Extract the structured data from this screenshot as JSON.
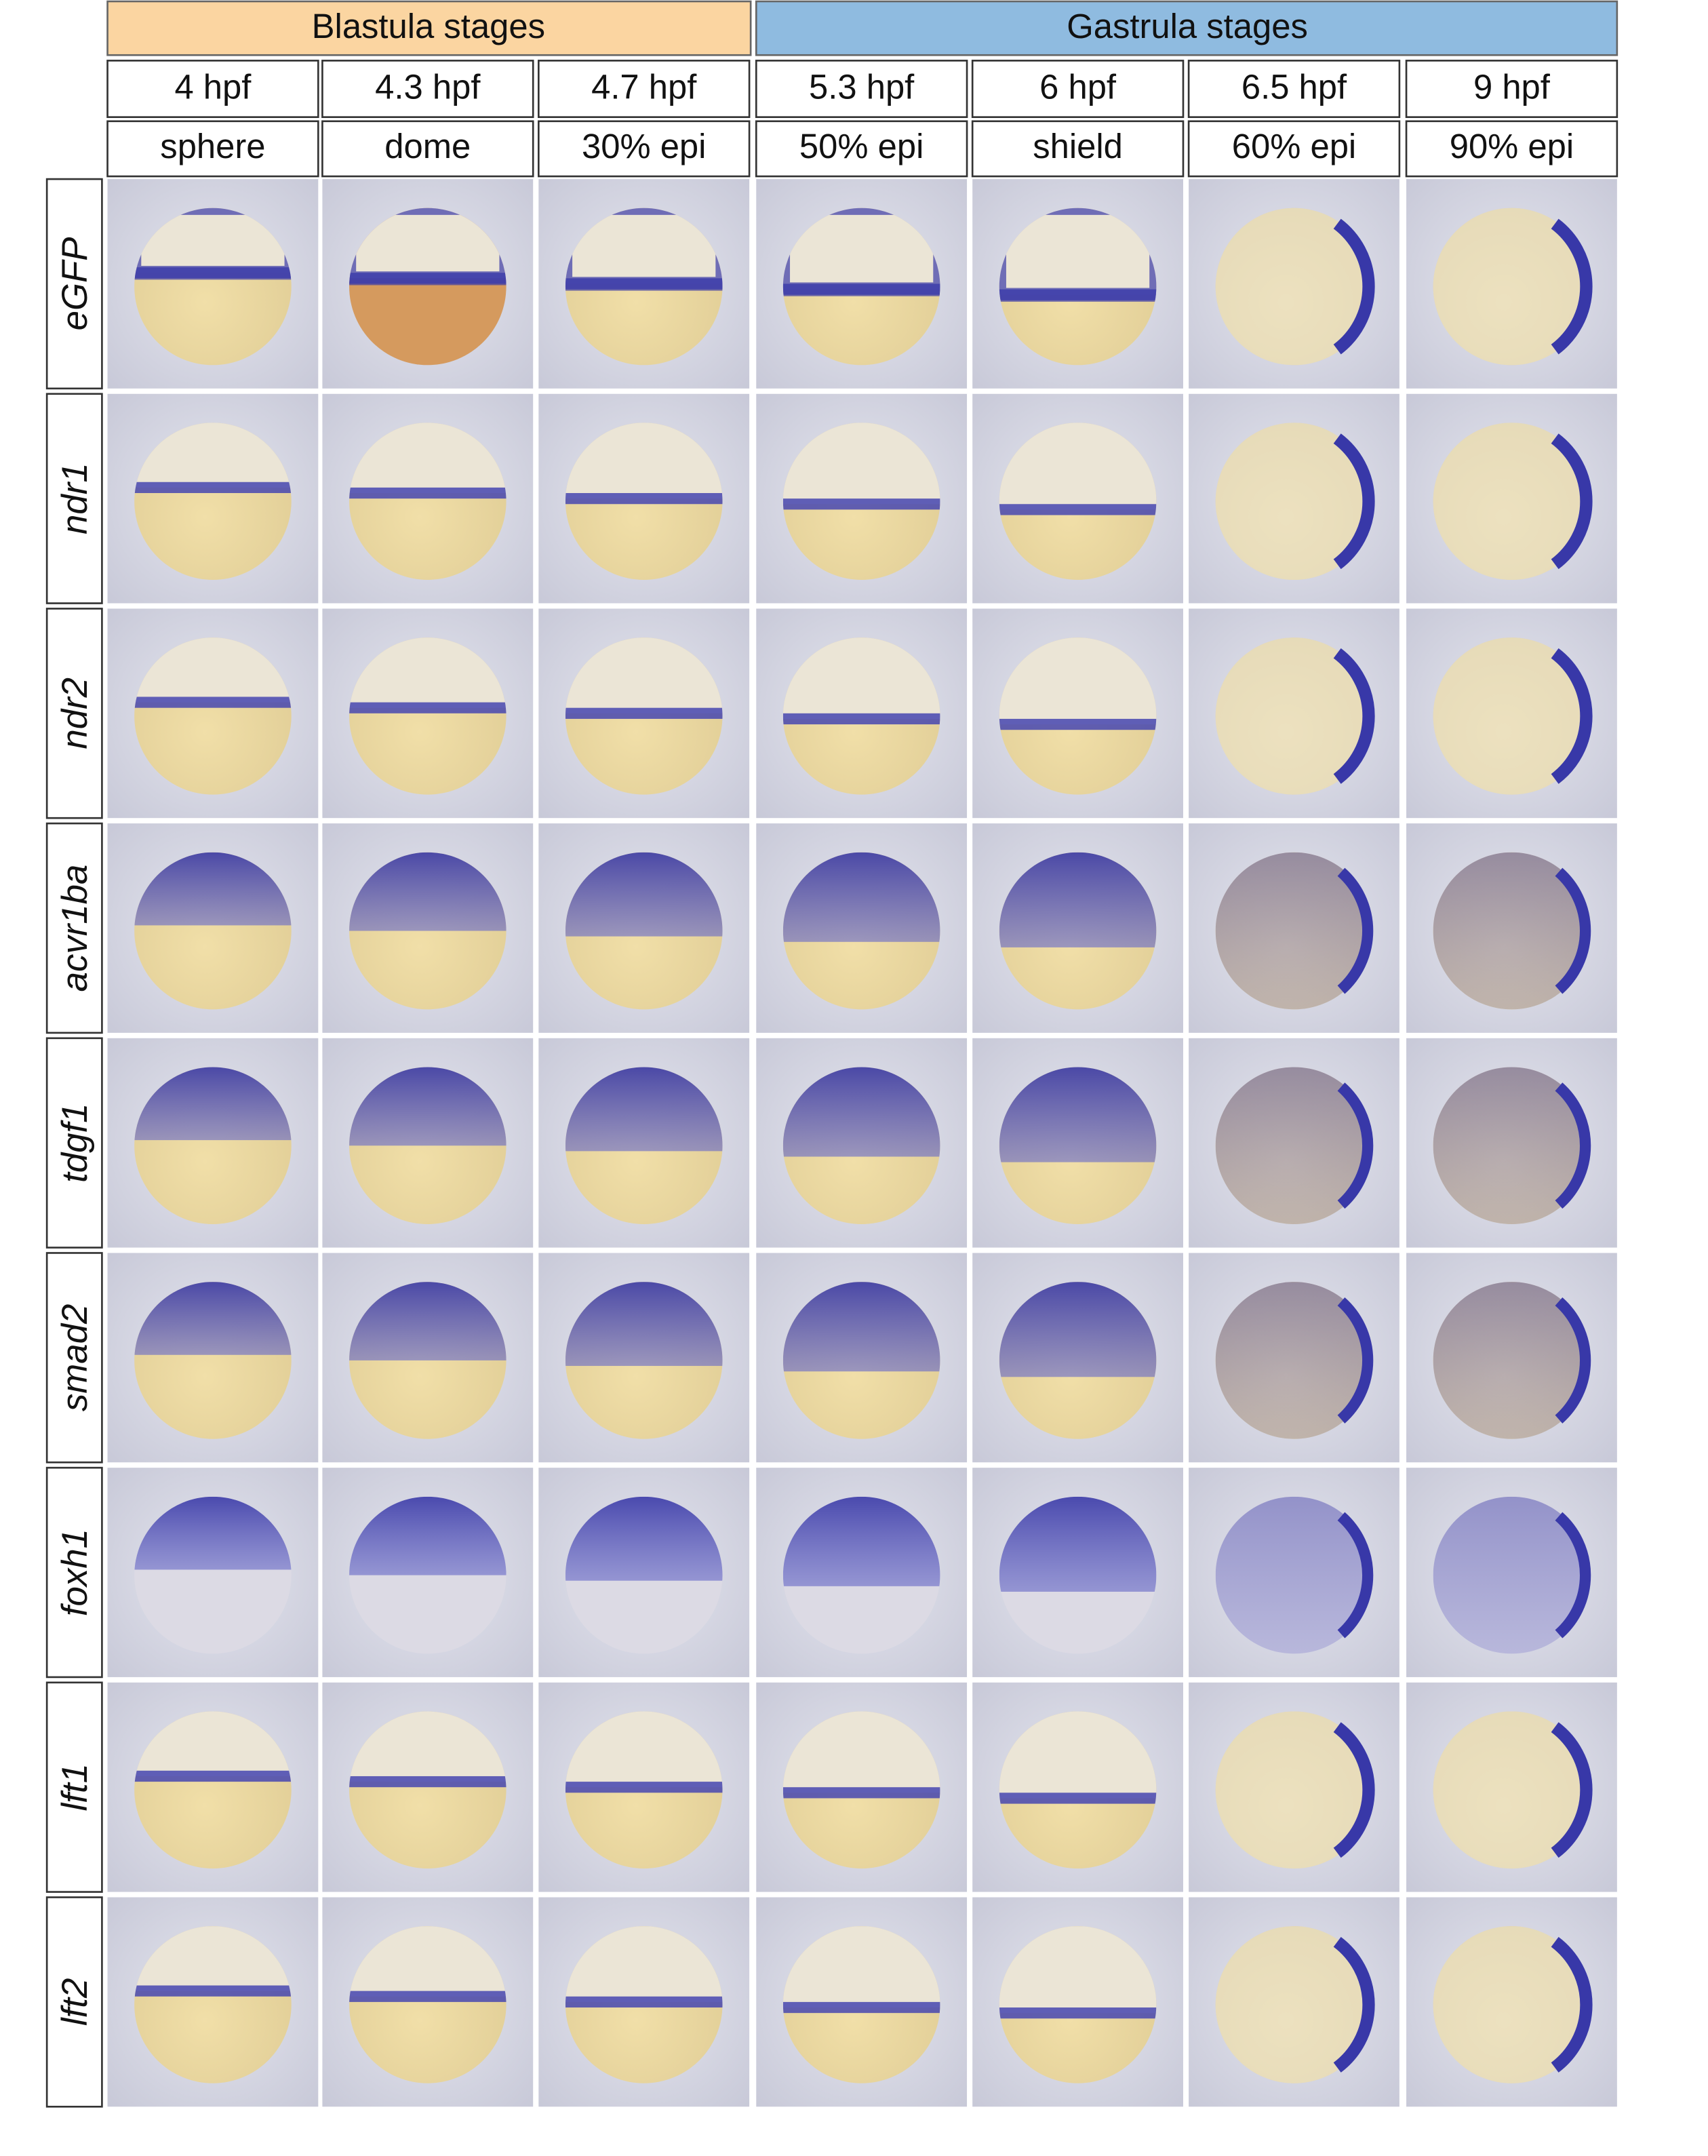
{
  "header": {
    "groups": [
      "Blastula stages",
      "Gastrula stages"
    ]
  },
  "columns": [
    {
      "time": "4 hpf",
      "stage": "sphere"
    },
    {
      "time": "4.3 hpf",
      "stage": "dome"
    },
    {
      "time": "4.7 hpf",
      "stage": "30% epi"
    },
    {
      "time": "5.3 hpf",
      "stage": "50% epi"
    },
    {
      "time": "6 hpf",
      "stage": "shield"
    },
    {
      "time": "6.5 hpf",
      "stage": "60% epi"
    },
    {
      "time": "9 hpf",
      "stage": "90% epi"
    }
  ],
  "genes": [
    "eGFP",
    "ndr1",
    "ndr2",
    "acvr1ba",
    "tdgf1",
    "smad2",
    "foxh1",
    "lft1",
    "lft2"
  ]
}
